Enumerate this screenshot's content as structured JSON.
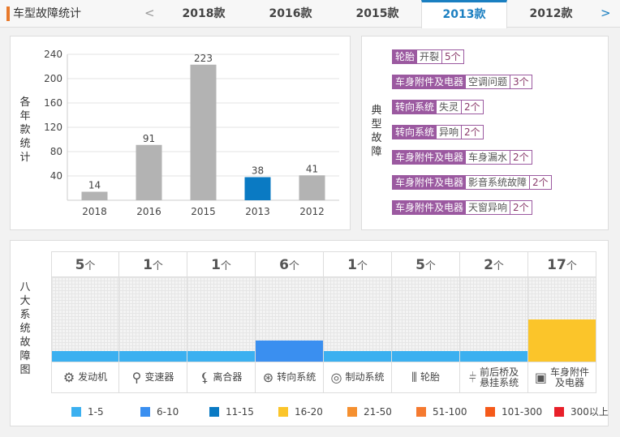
{
  "header": {
    "title": "车型故障统计",
    "prev": "<",
    "next": ">",
    "tabs": [
      {
        "label": "2018款"
      },
      {
        "label": "2016款"
      },
      {
        "label": "2015款"
      },
      {
        "label": "2013款",
        "active": true
      },
      {
        "label": "2012款"
      }
    ]
  },
  "chart_data": {
    "type": "bar",
    "ylabel": "各年款统计",
    "categories": [
      "2018",
      "2016",
      "2015",
      "2013",
      "2012"
    ],
    "values": [
      14,
      91,
      223,
      38,
      41
    ],
    "highlight": "2013",
    "yticks": [
      40,
      80,
      120,
      160,
      200,
      240
    ],
    "ylim": [
      0,
      240
    ],
    "grid": true,
    "colors": {
      "bar": "#b3b3b3",
      "highlight": "#0a7ac3"
    }
  },
  "faults": {
    "label": "典型故障",
    "items": [
      {
        "category": "轮胎",
        "desc": "开裂",
        "count": "5个"
      },
      {
        "category": "车身附件及电器",
        "desc": "空调问题",
        "count": "3个"
      },
      {
        "category": "转向系统",
        "desc": "失灵",
        "count": "2个"
      },
      {
        "category": "转向系统",
        "desc": "异响",
        "count": "2个"
      },
      {
        "category": "车身附件及电器",
        "desc": "车身漏水",
        "count": "2个"
      },
      {
        "category": "车身附件及电器",
        "desc": "影音系统故障",
        "count": "2个"
      },
      {
        "category": "车身附件及电器",
        "desc": "天窗异响",
        "count": "2个"
      }
    ]
  },
  "systems": {
    "label": "八大系统故障图",
    "unit": "个",
    "items": [
      {
        "name": "发动机",
        "count": "5",
        "level": 1,
        "icon": "engine-icon",
        "glyph": "⚙"
      },
      {
        "name": "变速器",
        "count": "1",
        "level": 1,
        "icon": "gear-shift-icon",
        "glyph": "⚲"
      },
      {
        "name": "离合器",
        "count": "1",
        "level": 1,
        "icon": "clutch-pedal-icon",
        "glyph": "⚸"
      },
      {
        "name": "转向系统",
        "count": "6",
        "level": 2,
        "icon": "steering-wheel-icon",
        "glyph": "⊛"
      },
      {
        "name": "制动系统",
        "count": "1",
        "level": 1,
        "icon": "brake-disc-icon",
        "glyph": "◎"
      },
      {
        "name": "轮胎",
        "count": "5",
        "level": 1,
        "icon": "tire-icon",
        "glyph": "⦀"
      },
      {
        "name": "前后桥及悬挂系统",
        "count": "2",
        "level": 1,
        "icon": "suspension-icon",
        "glyph": "⫩"
      },
      {
        "name": "车身附件及电器",
        "count": "17",
        "level": 4,
        "icon": "battery-icon",
        "glyph": "▣"
      }
    ]
  },
  "legend": [
    {
      "label": "1-5",
      "color": "#3bb0f0"
    },
    {
      "label": "6-10",
      "color": "#3a8ff0"
    },
    {
      "label": "11-15",
      "color": "#0a7ac3"
    },
    {
      "label": "16-20",
      "color": "#fbc52a"
    },
    {
      "label": "21-50",
      "color": "#f59030"
    },
    {
      "label": "51-100",
      "color": "#f57a30"
    },
    {
      "label": "101-300",
      "color": "#f55a1a"
    },
    {
      "label": "300以上",
      "color": "#e8202a"
    }
  ]
}
